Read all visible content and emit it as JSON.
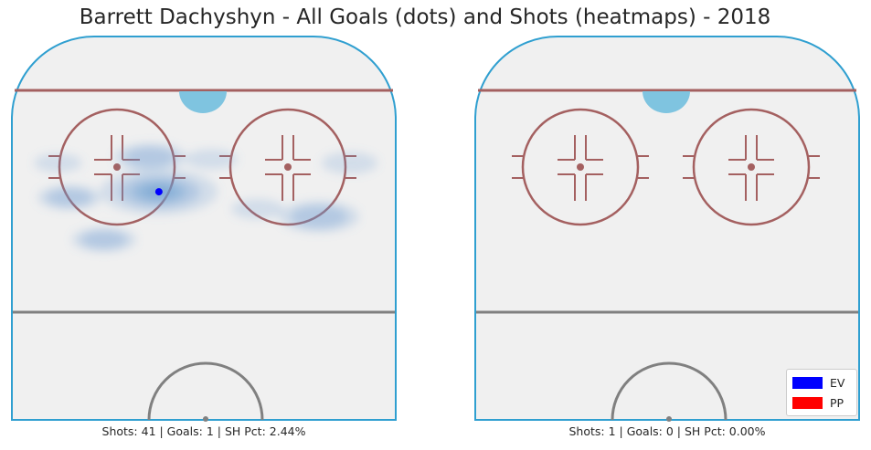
{
  "title": "Barrett Dachyshyn - All Goals (dots) and Shots (heatmaps) - 2018",
  "colors": {
    "ice": "#f0f0f0",
    "boards": "#2f9fd0",
    "red_line": "#a46060",
    "crease": "#7fc4e0",
    "center_line": "#808080",
    "heat": "#6a9dd0",
    "goal_ev": "#0000ff",
    "goal_pp": "#ff0000"
  },
  "chart_data": [
    {
      "type": "heatmap",
      "panel": "left",
      "caption": "Shots: 41 | Goals: 1 | SH Pct: 2.44%",
      "stats": {
        "shots": 41,
        "goals": 1,
        "sh_pct": 2.44
      },
      "goals": [
        {
          "strength": "EV",
          "x": 0.383,
          "y": 0.405
        }
      ],
      "shot_clusters": [
        {
          "x": 0.383,
          "y": 0.405,
          "weight": 1.0
        },
        {
          "x": 0.36,
          "y": 0.315,
          "weight": 0.45
        },
        {
          "x": 0.15,
          "y": 0.42,
          "weight": 0.35
        },
        {
          "x": 0.8,
          "y": 0.47,
          "weight": 0.55
        },
        {
          "x": 0.24,
          "y": 0.53,
          "weight": 0.35
        },
        {
          "x": 0.52,
          "y": 0.32,
          "weight": 0.2
        },
        {
          "x": 0.88,
          "y": 0.33,
          "weight": 0.25
        },
        {
          "x": 0.12,
          "y": 0.33,
          "weight": 0.15
        },
        {
          "x": 0.64,
          "y": 0.45,
          "weight": 0.2
        }
      ]
    },
    {
      "type": "heatmap",
      "panel": "right",
      "caption": "Shots: 1 | Goals: 0 | SH Pct: 0.00%",
      "stats": {
        "shots": 1,
        "goals": 0,
        "sh_pct": 0.0
      },
      "goals": [],
      "shot_clusters": []
    }
  ],
  "legend": {
    "position": "bottom-right",
    "items": [
      {
        "label": "EV",
        "color": "#0000ff"
      },
      {
        "label": "PP",
        "color": "#ff0000"
      }
    ]
  }
}
